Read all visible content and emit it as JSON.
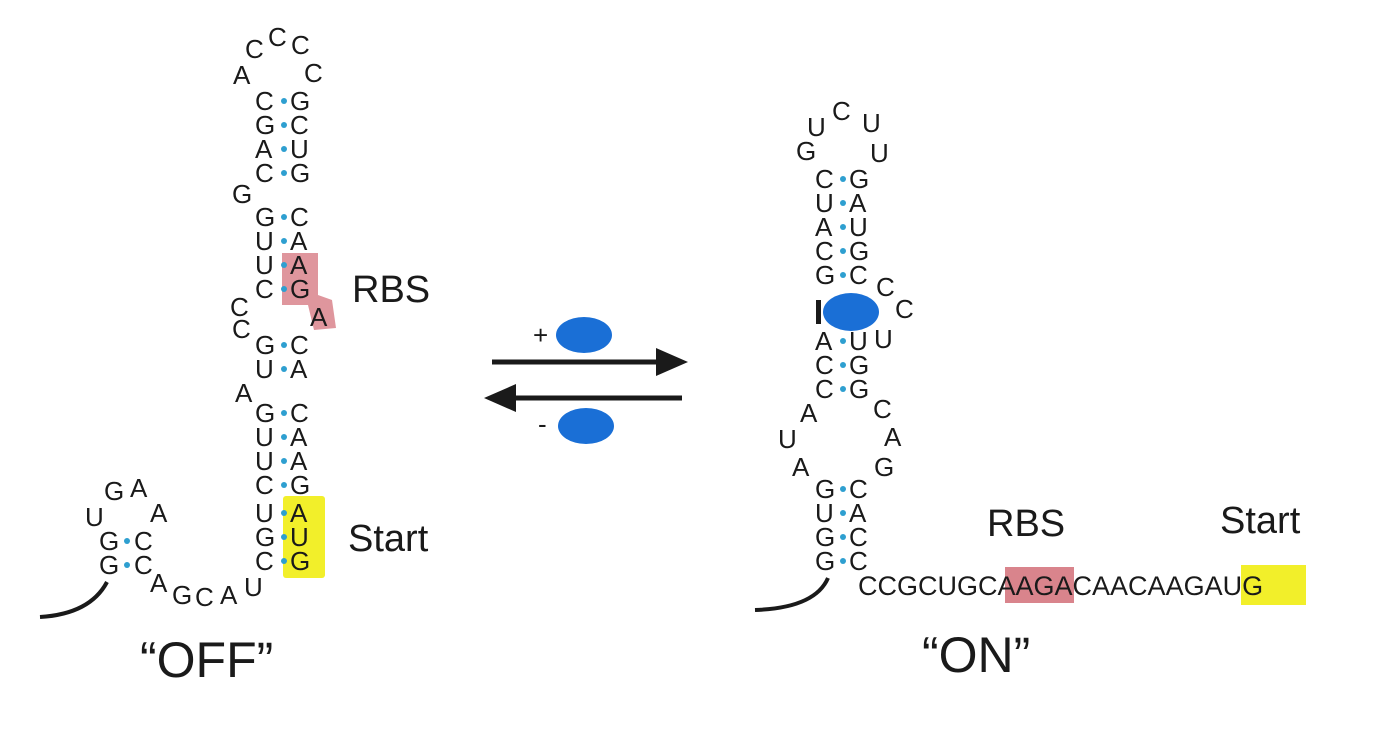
{
  "labels": {
    "rbs_off": "RBS",
    "start_off": "Start",
    "off_state": "“OFF”",
    "rbs_on": "RBS",
    "start_on": "Start",
    "on_state": "“ON”",
    "plus": "+",
    "minus": "-"
  },
  "off_structure": {
    "loop": [
      "A",
      "C",
      "C",
      "C",
      "C"
    ],
    "stem_pairs": [
      [
        "C",
        "G"
      ],
      [
        "G",
        "C"
      ],
      [
        "A",
        "U"
      ],
      [
        "C",
        "G"
      ],
      [
        "G",
        "C"
      ],
      [
        "U",
        "A"
      ],
      [
        "U",
        "A"
      ],
      [
        "C",
        "G"
      ],
      [
        "G",
        "C"
      ],
      [
        "U",
        "A"
      ],
      [
        "G",
        "C"
      ],
      [
        "U",
        "A"
      ],
      [
        "U",
        "A"
      ],
      [
        "C",
        "G"
      ],
      [
        "U",
        "A"
      ],
      [
        "G",
        "U"
      ],
      [
        "C",
        "G"
      ]
    ],
    "bulges": [
      "G",
      "C",
      "C",
      "A",
      "A"
    ],
    "small_hairpin": {
      "loop": [
        "U",
        "G",
        "A",
        "A"
      ],
      "pairs": [
        [
          "G",
          "C"
        ],
        [
          "G",
          "C"
        ]
      ]
    },
    "linker": [
      "A",
      "G",
      "C",
      "A",
      "U"
    ]
  },
  "on_structure": {
    "loop": [
      "G",
      "U",
      "C",
      "U",
      "U"
    ],
    "stem_pairs": [
      [
        "C",
        "G"
      ],
      [
        "U",
        "A"
      ],
      [
        "A",
        "U"
      ],
      [
        "C",
        "G"
      ],
      [
        "G",
        "C"
      ],
      [
        "A",
        "U"
      ],
      [
        "C",
        "G"
      ],
      [
        "C",
        "G"
      ],
      [
        "G",
        "C"
      ],
      [
        "U",
        "A"
      ],
      [
        "G",
        "C"
      ],
      [
        "G",
        "C"
      ]
    ],
    "bulges": [
      "C",
      "C",
      "U",
      "C",
      "A",
      "G",
      "A",
      "U",
      "A"
    ],
    "sequence": {
      "pre": "CCGCUGC",
      "rbs": "AAG",
      "mid": "ACAACAAG",
      "start": "AUG"
    }
  },
  "colors": {
    "rbs_highlight": "#d9848c",
    "start_highlight": "#f2ef2a",
    "ligand": "#1a6fd6",
    "pair_dot": "#2e9fd0",
    "text": "#1a1a1a"
  }
}
